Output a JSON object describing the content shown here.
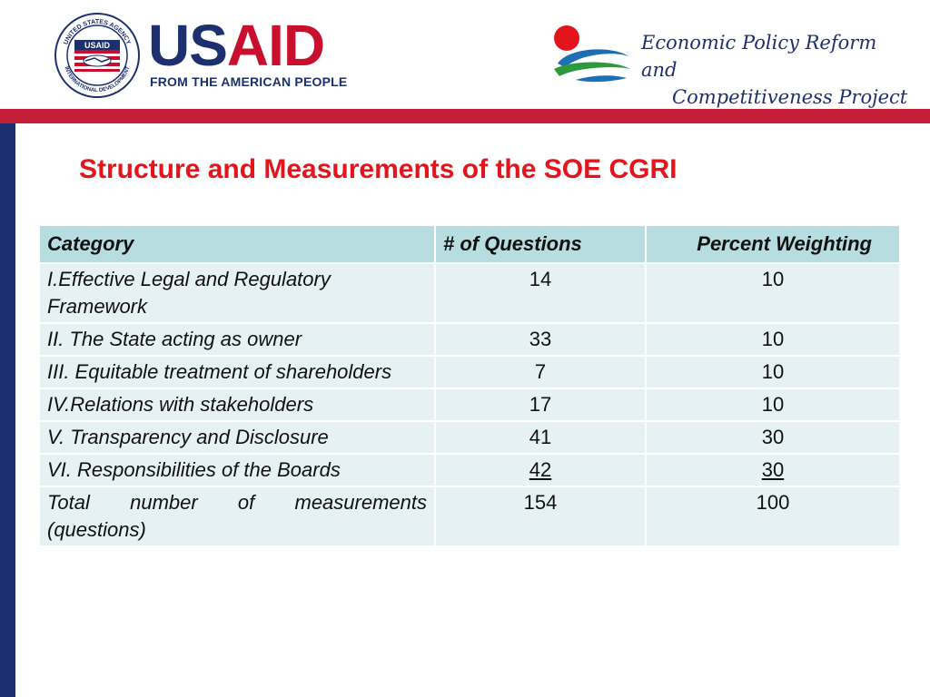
{
  "header": {
    "usaid_logo": {
      "seal_text_top": "UNITED STATES AGENCY",
      "seal_text_bottom": "INTERNATIONAL DEVELOPMENT",
      "seal_center": "USAID",
      "word_us": "US",
      "word_aid": "AID",
      "tagline": "FROM THE AMERICAN PEOPLE"
    },
    "project_logo": {
      "line1": "Economic Policy Reform and",
      "line2": "Competitiveness Project"
    }
  },
  "title": "Structure and Measurements of the SOE CGRI",
  "table": {
    "headers": [
      "Category",
      "# of Questions",
      "Percent Weighting"
    ],
    "rows": [
      [
        "I.Effective Legal and Regulatory Framework",
        "14",
        "10"
      ],
      [
        "II. The State acting as owner",
        "33",
        "10"
      ],
      [
        "III. Equitable treatment of shareholders",
        "7",
        "10"
      ],
      [
        "IV.Relations with stakeholders",
        "17",
        "10"
      ],
      [
        "V. Transparency and Disclosure",
        "41",
        "30"
      ],
      [
        "VI. Responsibilities of the Boards",
        "42",
        "30"
      ],
      [
        "Total number of measurements (questions)",
        "154",
        "100"
      ]
    ]
  },
  "colors": {
    "usaid_blue": "#1c2f6e",
    "usaid_red": "#c8102e",
    "title_red": "#e3141b",
    "header_cell": "#b7dde1",
    "body_cell": "#e6f1f3"
  },
  "icons": [
    "usaid-seal-icon",
    "handshake-icon",
    "epr-swirl-logo-icon"
  ]
}
